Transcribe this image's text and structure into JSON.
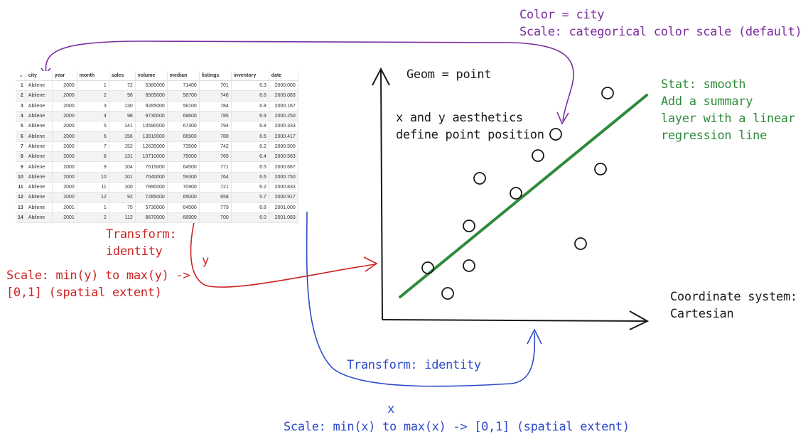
{
  "annotations": {
    "color_line1": "Color = city",
    "color_line2": "Scale: categorical color scale (default)",
    "geom": "Geom = point",
    "aesthetics_line1": "x and y aesthetics",
    "aesthetics_line2": "define point position",
    "stat_line1": "Stat: smooth",
    "stat_line2": "Add a summary",
    "stat_line3": "layer with a linear",
    "stat_line4": "regression line",
    "transform_y_line1": "Transform:",
    "transform_y_line2": "identity",
    "y_label": "y",
    "scale_y_line1": "Scale: min(y) to max(y) ->",
    "scale_y_line2": "[0,1] (spatial extent)",
    "coord_line1": "Coordinate system:",
    "coord_line2": "Cartesian",
    "transform_x": "Transform: identity",
    "x_label": "x",
    "scale_x": "Scale: min(x) to max(x) -> [0,1] (spatial extent)"
  },
  "table": {
    "sort_indicator": "▲",
    "columns": [
      "city",
      "year",
      "month",
      "sales",
      "volume",
      "median",
      "listings",
      "inventory",
      "date"
    ],
    "rows": [
      [
        "1",
        "Abilene",
        "2000",
        "1",
        "72",
        "5380000",
        "71400",
        "701",
        "6.3",
        "2000.000"
      ],
      [
        "2",
        "Abilene",
        "2000",
        "2",
        "98",
        "6505000",
        "58700",
        "746",
        "6.6",
        "2000.083"
      ],
      [
        "3",
        "Abilene",
        "2000",
        "3",
        "130",
        "9285000",
        "58100",
        "784",
        "6.8",
        "2000.167"
      ],
      [
        "4",
        "Abilene",
        "2000",
        "4",
        "98",
        "9730000",
        "68600",
        "785",
        "6.9",
        "2000.250"
      ],
      [
        "5",
        "Abilene",
        "2000",
        "5",
        "141",
        "10590000",
        "67300",
        "794",
        "6.8",
        "2000.333"
      ],
      [
        "6",
        "Abilene",
        "2000",
        "6",
        "156",
        "13910000",
        "66900",
        "780",
        "6.6",
        "2000.417"
      ],
      [
        "7",
        "Abilene",
        "2000",
        "7",
        "152",
        "12635000",
        "73500",
        "742",
        "6.2",
        "2000.500"
      ],
      [
        "8",
        "Abilene",
        "2000",
        "8",
        "131",
        "10710000",
        "75000",
        "765",
        "6.4",
        "2000.583"
      ],
      [
        "9",
        "Abilene",
        "2000",
        "9",
        "104",
        "7615000",
        "64500",
        "771",
        "6.5",
        "2000.667"
      ],
      [
        "10",
        "Abilene",
        "2000",
        "10",
        "101",
        "7040000",
        "59300",
        "764",
        "6.6",
        "2000.750"
      ],
      [
        "11",
        "Abilene",
        "2000",
        "11",
        "100",
        "7890000",
        "70900",
        "721",
        "6.2",
        "2000.833"
      ],
      [
        "12",
        "Abilene",
        "2000",
        "12",
        "92",
        "7285000",
        "65000",
        "658",
        "5.7",
        "2000.917"
      ],
      [
        "13",
        "Abilene",
        "2001",
        "1",
        "75",
        "5730000",
        "64500",
        "779",
        "6.8",
        "2001.000"
      ],
      [
        "14",
        "Abilene",
        "2001",
        "2",
        "112",
        "8670000",
        "68900",
        "700",
        "6.0",
        "2001.083"
      ]
    ]
  },
  "colors": {
    "purple": "#7b2d9e",
    "green": "#2e8b3a",
    "red": "#cc2222",
    "blue": "#2c4bc9",
    "axis": "#1a1a1a"
  }
}
